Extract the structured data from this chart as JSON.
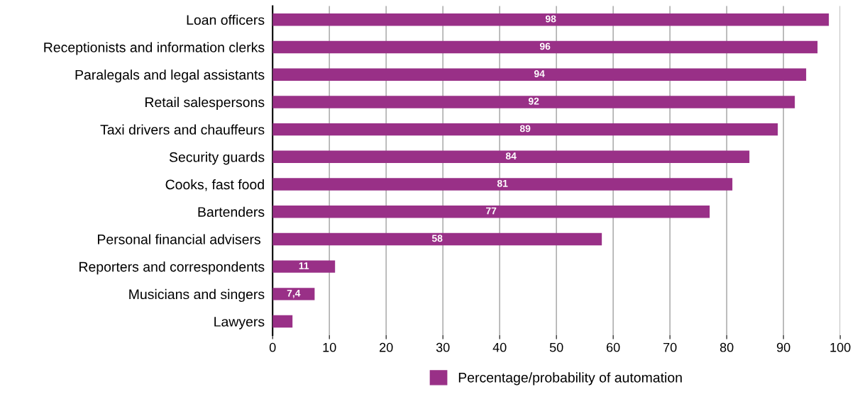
{
  "chart_data": {
    "type": "bar",
    "orientation": "horizontal",
    "categories": [
      "Loan officers",
      "Receptionists and information clerks",
      "Paralegals and legal assistants",
      "Retail salespersons",
      "Taxi drivers and chauffeurs",
      "Security guards",
      "Cooks, fast food",
      "Bartenders",
      "Personal financial advisers ",
      "Reporters and correspondents",
      "Musicians and singers",
      "Lawyers"
    ],
    "series": [
      {
        "name": "Percentage/probability of automation",
        "color": "#993087",
        "values": [
          98,
          96,
          94,
          92,
          89,
          84,
          81,
          77,
          58,
          11,
          7.4,
          3.5
        ],
        "value_labels": [
          "98",
          "96",
          "94",
          "92",
          "89",
          "84",
          "81",
          "77",
          "58",
          "11",
          "7,4",
          null
        ]
      }
    ],
    "xlim": [
      0,
      100
    ],
    "xticks": [
      0,
      10,
      20,
      30,
      40,
      50,
      60,
      70,
      80,
      90,
      100
    ],
    "grid": "x",
    "legend": "bottom"
  }
}
